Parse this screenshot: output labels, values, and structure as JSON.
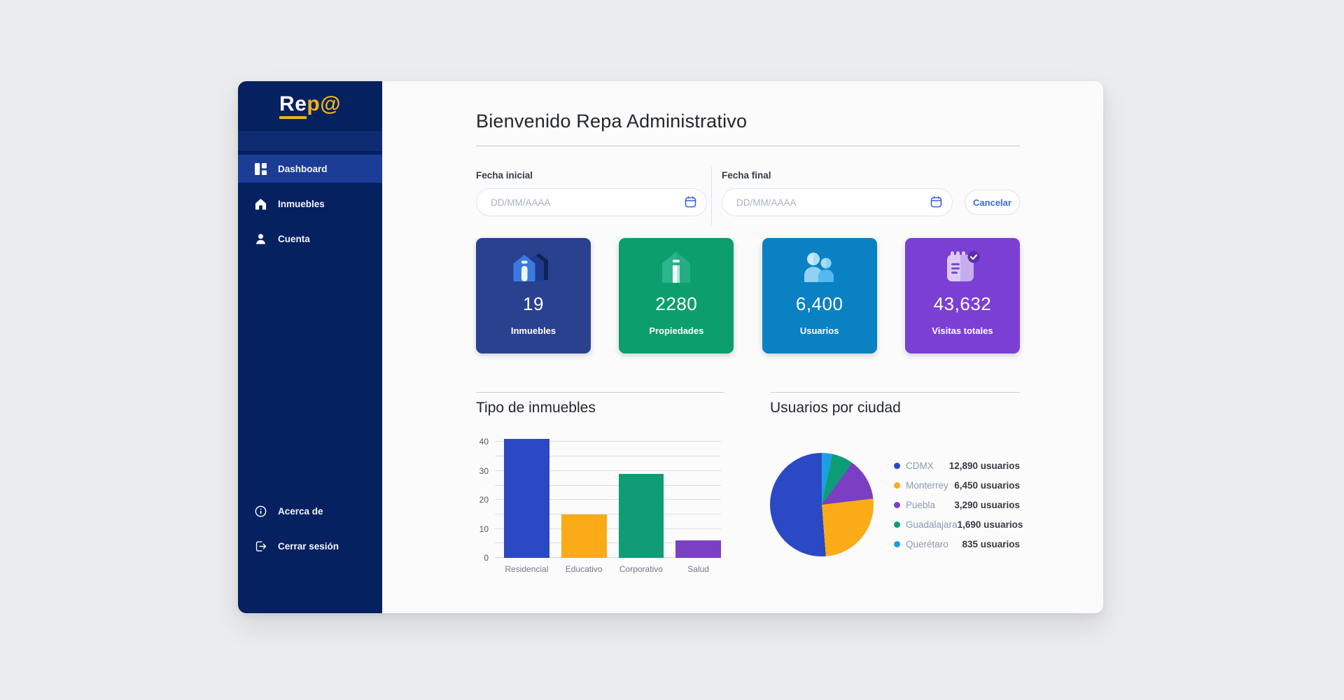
{
  "sidebar": {
    "logo": {
      "part1": "Re",
      "part2": "p@"
    },
    "items": [
      {
        "label": "Dashboard",
        "icon": "dashboard-icon",
        "active": true
      },
      {
        "label": "Inmuebles",
        "icon": "home-icon",
        "active": false
      },
      {
        "label": "Cuenta",
        "icon": "user-icon",
        "active": false
      }
    ],
    "footer_items": [
      {
        "label": "Acerca de",
        "icon": "info-icon"
      },
      {
        "label": "Cerrar sesión",
        "icon": "logout-icon"
      }
    ]
  },
  "header": {
    "title": "Bienvenido Repa Administrativo"
  },
  "filters": {
    "start": {
      "label": "Fecha inicial",
      "placeholder": "DD/MM/AAAA"
    },
    "end": {
      "label": "Fecha final",
      "placeholder": "DD/MM/AAAA"
    },
    "cancel_label": "Cancelar"
  },
  "stats": [
    {
      "value": "19",
      "label": "Inmuebles",
      "color": "#2a4190",
      "icon": "buildings-icon"
    },
    {
      "value": "2280",
      "label": "Propiedades",
      "color": "#0d9e6e",
      "icon": "house-icon"
    },
    {
      "value": "6,400",
      "label": "Usuarios",
      "color": "#0a81c2",
      "icon": "users-icon"
    },
    {
      "value": "43,632",
      "label": "Visitas totales",
      "color": "#7b3fd4",
      "icon": "calendar-check-icon"
    }
  ],
  "chart_data": [
    {
      "type": "bar",
      "title": "Tipo de inmuebles",
      "categories": [
        "Residencial",
        "Educativo",
        "Corporativo",
        "Salud"
      ],
      "values": [
        41,
        15,
        29,
        6
      ],
      "colors": [
        "#2b49c5",
        "#fbab17",
        "#0f9d76",
        "#7b3fc4"
      ],
      "yticks": [
        0,
        10,
        20,
        30,
        40
      ],
      "grid_step": 5,
      "ylim": [
        0,
        43
      ],
      "grid": true,
      "xlabel": "",
      "ylabel": ""
    },
    {
      "type": "pie",
      "title": "Usuarios por ciudad",
      "series": [
        {
          "name": "CDMX",
          "value": 12890,
          "display": "12,890 usuarios",
          "color": "#2b49c5"
        },
        {
          "name": "Monterrey",
          "value": 6450,
          "display": "6,450 usuarios",
          "color": "#fbab17"
        },
        {
          "name": "Puebla",
          "value": 3290,
          "display": "3,290 usuarios",
          "color": "#7b3fc4"
        },
        {
          "name": "Guadalajara",
          "value": 1690,
          "display": "1,690 usuarios",
          "color": "#0f9d76"
        },
        {
          "name": "Querétaro",
          "value": 835,
          "display": "835 usuarios",
          "color": "#1b9fe0"
        }
      ],
      "legend_position": "right",
      "clockwise_from_top_order": [
        "Querétaro",
        "Guadalajara",
        "Puebla",
        "Monterrey",
        "CDMX"
      ]
    }
  ]
}
